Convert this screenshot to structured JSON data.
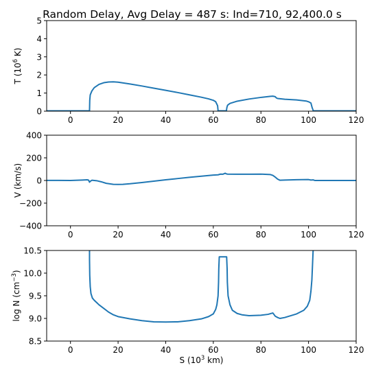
{
  "figure": {
    "title": "Random Delay, Avg Delay = 487 s: Ind=710, 92,400.0 s",
    "line_color": "#1f77b4"
  },
  "chart_data": [
    {
      "type": "line",
      "panel": "temperature",
      "ylabel_main": "T (10",
      "ylabel_sup": "6",
      "ylabel_tail": " K)",
      "xlim": [
        -10,
        120
      ],
      "ylim": [
        0,
        5
      ],
      "xticks": [
        0,
        20,
        40,
        60,
        80,
        100,
        120
      ],
      "yticks": [
        0,
        1,
        2,
        3,
        4,
        5
      ],
      "grid": false,
      "series": [
        {
          "x": [
            -10,
            8,
            8.1,
            8.3,
            9,
            10,
            12,
            14,
            16,
            18,
            20,
            25,
            30,
            35,
            40,
            45,
            50,
            55,
            58,
            60,
            61,
            61.8,
            62,
            62.3,
            65.5,
            65.7,
            66,
            67,
            70,
            75,
            80,
            84,
            85,
            86,
            86.5,
            87,
            90,
            95,
            99,
            100,
            101,
            101.5,
            102,
            120
          ],
          "y": [
            0.02,
            0.02,
            0.6,
            0.9,
            1.12,
            1.3,
            1.48,
            1.57,
            1.61,
            1.62,
            1.6,
            1.5,
            1.39,
            1.27,
            1.15,
            1.03,
            0.9,
            0.77,
            0.68,
            0.6,
            0.52,
            0.3,
            0.02,
            0.02,
            0.02,
            0.2,
            0.33,
            0.43,
            0.55,
            0.67,
            0.76,
            0.82,
            0.83,
            0.8,
            0.73,
            0.7,
            0.66,
            0.62,
            0.56,
            0.52,
            0.45,
            0.2,
            0.02,
            0.02
          ]
        }
      ]
    },
    {
      "type": "line",
      "panel": "velocity",
      "ylabel_main": "V (km/s)",
      "xlim": [
        -10,
        120
      ],
      "ylim": [
        -400,
        400
      ],
      "xticks": [
        0,
        20,
        40,
        60,
        80,
        100,
        120
      ],
      "yticks": [
        -400,
        -200,
        0,
        200,
        400
      ],
      "grid": false,
      "series": [
        {
          "x": [
            -10,
            -5,
            0,
            5,
            7,
            7.6,
            8,
            8.4,
            9,
            11,
            13,
            15,
            18,
            20,
            22,
            25,
            30,
            35,
            40,
            45,
            50,
            55,
            60,
            62,
            63,
            64,
            65,
            65.5,
            66,
            70,
            75,
            80,
            84,
            85,
            86,
            87,
            88,
            90,
            95,
            100,
            101,
            102,
            102.5,
            103,
            120
          ],
          "y": [
            1,
            1,
            0,
            4,
            6,
            3,
            -15,
            -6,
            2,
            -2,
            -12,
            -25,
            -34,
            -35,
            -34,
            -29,
            -18,
            -6,
            6,
            17,
            28,
            38,
            48,
            50,
            56,
            55,
            64,
            58,
            56,
            55,
            55,
            56,
            52,
            45,
            30,
            12,
            2,
            4,
            7,
            8,
            4,
            5,
            1,
            0,
            0
          ]
        }
      ]
    },
    {
      "type": "line",
      "panel": "density",
      "ylabel_main": "log N (cm",
      "ylabel_sup": "−3",
      "ylabel_tail": ")",
      "xlabel_main": "S (10",
      "xlabel_sup": "3",
      "xlabel_tail": " km)",
      "xlim": [
        -10,
        120
      ],
      "ylim": [
        8.5,
        10.5
      ],
      "xticks": [
        0,
        20,
        40,
        60,
        80,
        100,
        120
      ],
      "yticks": [
        8.5,
        9.0,
        9.5,
        10.0,
        10.5
      ],
      "ytick_labels": [
        "8.5",
        "9.0",
        "9.5",
        "10.0",
        "10.5"
      ],
      "grid": false,
      "series": [
        {
          "x": [
            8,
            8,
            8.1,
            8.3,
            8.6,
            9.2,
            10,
            11,
            12,
            14,
            16,
            18,
            20,
            25,
            30,
            35,
            40,
            45,
            50,
            55,
            58,
            60,
            61,
            61.5,
            62,
            62.2,
            62.3,
            62.5,
            65.6,
            65.8,
            65.9,
            66.2,
            67,
            68,
            70,
            72,
            75,
            80,
            83,
            85,
            86,
            87,
            88,
            90,
            95,
            98,
            99.5,
            100.5,
            101,
            101.4,
            101.6,
            101.8,
            102
          ],
          "y": [
            10.6,
            10.3,
            9.95,
            9.7,
            9.55,
            9.45,
            9.4,
            9.35,
            9.3,
            9.22,
            9.14,
            9.08,
            9.04,
            8.99,
            8.95,
            8.925,
            8.92,
            8.925,
            8.95,
            8.99,
            9.04,
            9.1,
            9.2,
            9.3,
            9.5,
            9.8,
            10.1,
            10.36,
            10.36,
            10.1,
            9.8,
            9.5,
            9.3,
            9.18,
            9.11,
            9.08,
            9.06,
            9.07,
            9.09,
            9.12,
            9.05,
            9.02,
            9.0,
            9.02,
            9.1,
            9.18,
            9.27,
            9.4,
            9.6,
            9.85,
            10.1,
            10.35,
            10.6
          ]
        }
      ]
    }
  ]
}
